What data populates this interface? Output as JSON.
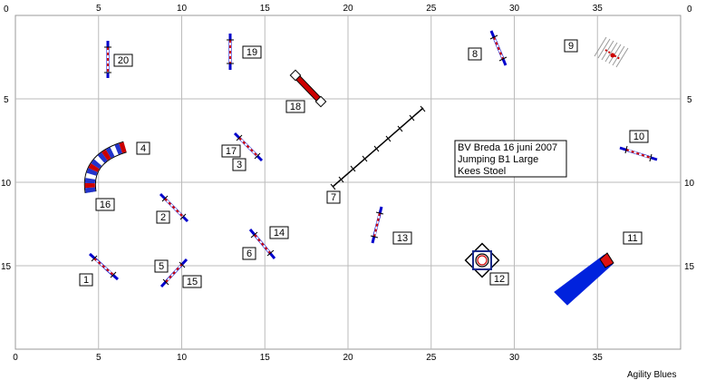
{
  "axes": {
    "x_ticks": [
      "0",
      "5",
      "10",
      "15",
      "20",
      "25",
      "30",
      "35"
    ],
    "y_ticks": [
      "0",
      "5",
      "10",
      "15"
    ]
  },
  "info": {
    "line1": "BV Breda 16 juni 2007",
    "line2": "Jumping B1 Large",
    "line3": "Kees Stoel"
  },
  "labels": {
    "n1": "1",
    "n2": "2",
    "n3": "3",
    "n4": "4",
    "n5": "5",
    "n6": "6",
    "n7": "7",
    "n8": "8",
    "n9": "9",
    "n10": "10",
    "n11": "11",
    "n12": "12",
    "n13": "13",
    "n14": "14",
    "n15": "15",
    "n16": "16",
    "n17": "17",
    "n18": "18",
    "n19": "19",
    "n20": "20"
  },
  "brand": "Agility Blues",
  "colors": {
    "pole_red": "#cc0000",
    "wing_blue": "#0000cc",
    "tunnel_blue": "#0022dd",
    "grid": "#bbbbbb"
  }
}
